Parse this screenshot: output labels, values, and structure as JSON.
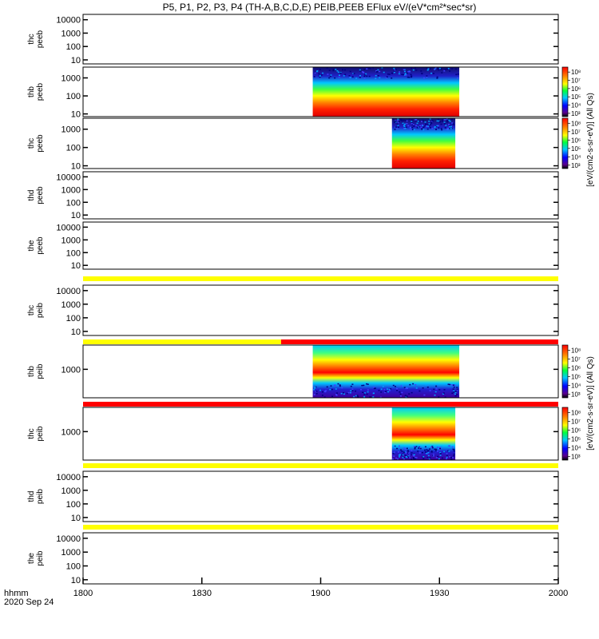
{
  "chart_data": {
    "type": "heatmap",
    "title": "P5, P1, P2, P3, P4 (TH-A,B,C,D,E) PEIB,PEEB EFlux eV/(eV*cm²*sec*sr)",
    "x_axis": {
      "label": "hhmm",
      "date": "2020 Sep 24",
      "ticks": [
        "1800",
        "1830",
        "1900",
        "1930",
        "2000"
      ],
      "range": [
        "18:00",
        "20:00"
      ]
    },
    "colorbar_label": "[eV/(cm2-s-sr-eV)] (All Qs)",
    "colorbar_ticks": [
      "10³",
      "10⁴",
      "10⁵",
      "10⁶",
      "10⁷",
      "10⁸"
    ],
    "panels": [
      {
        "probe": "thc",
        "product": "peeb",
        "y_ticks": [
          "10",
          "100",
          "1000",
          "10000"
        ],
        "log_scale": true,
        "data_start": null,
        "data_end": null,
        "flag_bar": null
      },
      {
        "probe": "thb",
        "product": "peeb",
        "y_ticks": [
          "10",
          "100",
          "1000"
        ],
        "log_scale": true,
        "data_start": "18:58",
        "data_end": "19:35",
        "flag_bar": null
      },
      {
        "probe": "thc",
        "product": "peeb",
        "y_ticks": [
          "10",
          "100",
          "1000"
        ],
        "log_scale": true,
        "data_start": "19:18",
        "data_end": "19:34",
        "flag_bar": null
      },
      {
        "probe": "thd",
        "product": "peeb",
        "y_ticks": [
          "10",
          "100",
          "1000",
          "10000"
        ],
        "log_scale": true,
        "data_start": null,
        "data_end": null,
        "flag_bar": null
      },
      {
        "probe": "the",
        "product": "peeb",
        "y_ticks": [
          "10",
          "100",
          "1000",
          "10000"
        ],
        "log_scale": true,
        "data_start": null,
        "data_end": null,
        "flag_bar": "yellow"
      },
      {
        "probe": "thc",
        "product": "peib",
        "y_ticks": [
          "10",
          "100",
          "1000",
          "10000"
        ],
        "log_scale": true,
        "data_start": null,
        "data_end": null,
        "flag_bar": "yellow-red"
      },
      {
        "probe": "thb",
        "product": "peib",
        "y_ticks": [
          "1000"
        ],
        "log_scale": true,
        "data_start": "18:58",
        "data_end": "19:35",
        "flag_bar": "red"
      },
      {
        "probe": "thc",
        "product": "peib",
        "y_ticks": [
          "1000"
        ],
        "log_scale": true,
        "data_start": "19:18",
        "data_end": "19:34",
        "flag_bar": "yellow"
      },
      {
        "probe": "thd",
        "product": "peib",
        "y_ticks": [
          "10",
          "100",
          "1000",
          "10000"
        ],
        "log_scale": true,
        "data_start": null,
        "data_end": null,
        "flag_bar": "yellow"
      },
      {
        "probe": "the",
        "product": "peib",
        "y_ticks": [
          "10",
          "100",
          "1000",
          "10000"
        ],
        "log_scale": true,
        "data_start": null,
        "data_end": null,
        "flag_bar": null
      }
    ],
    "flag_colors": {
      "yellow": "#ffff00",
      "red": "#ff0000"
    }
  }
}
